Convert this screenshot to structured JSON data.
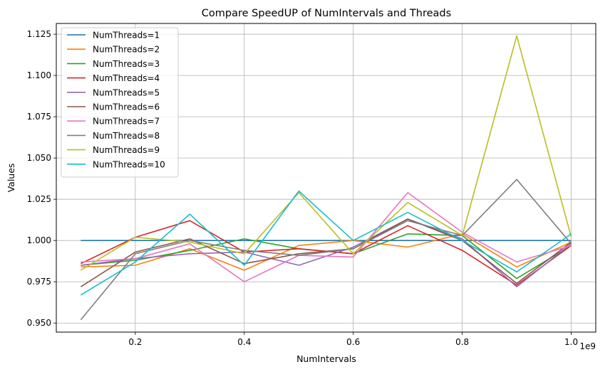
{
  "chart_data": {
    "type": "line",
    "title": "Compare SpeedUP of NumIntervals and Threads",
    "xlabel": "NumIntervals",
    "ylabel": "Values",
    "x_offset_text": "1e9",
    "x": [
      0.1,
      0.2,
      0.3,
      0.4,
      0.5,
      0.6,
      0.7,
      0.8,
      0.9,
      1.0
    ],
    "xlim": [
      0.055,
      1.045
    ],
    "ylim": [
      0.9445,
      1.1315
    ],
    "xticks": [
      0.2,
      0.4,
      0.6,
      0.8,
      1.0
    ],
    "xtick_labels": [
      "0.2",
      "0.4",
      "0.6",
      "0.8",
      "1.0"
    ],
    "yticks": [
      0.95,
      0.975,
      1.0,
      1.025,
      1.05,
      1.075,
      1.1,
      1.125
    ],
    "ytick_labels": [
      "0.950",
      "0.975",
      "1.000",
      "1.025",
      "1.050",
      "1.075",
      "1.100",
      "1.125"
    ],
    "grid": true,
    "legend_position": "top-left",
    "series": [
      {
        "name": "NumThreads=1",
        "color": "#1f77b4",
        "values": [
          1.0,
          1.0,
          1.0,
          1.0,
          1.0,
          1.0,
          1.0,
          1.0,
          1.0,
          1.0
        ]
      },
      {
        "name": "NumThreads=2",
        "color": "#ff7f0e",
        "values": [
          0.984,
          0.985,
          0.995,
          0.982,
          0.997,
          1.0,
          0.996,
          1.004,
          0.984,
          0.999
        ]
      },
      {
        "name": "NumThreads=3",
        "color": "#2ca02c",
        "values": [
          0.985,
          0.988,
          0.994,
          1.001,
          0.995,
          0.992,
          1.004,
          1.003,
          0.977,
          0.997
        ]
      },
      {
        "name": "NumThreads=4",
        "color": "#d62728",
        "values": [
          0.986,
          1.002,
          1.012,
          0.993,
          0.995,
          0.992,
          1.009,
          0.994,
          0.973,
          0.997
        ]
      },
      {
        "name": "NumThreads=5",
        "color": "#9467bd",
        "values": [
          0.985,
          0.989,
          0.992,
          0.993,
          0.985,
          0.996,
          1.013,
          1.001,
          0.972,
          0.998
        ]
      },
      {
        "name": "NumThreads=6",
        "color": "#8c564b",
        "values": [
          0.972,
          0.993,
          1.001,
          0.986,
          0.992,
          0.995,
          1.013,
          1.0,
          0.974,
          0.999
        ]
      },
      {
        "name": "NumThreads=7",
        "color": "#e377c2",
        "values": [
          0.987,
          0.989,
          0.998,
          0.975,
          0.991,
          0.99,
          1.029,
          1.005,
          0.987,
          0.997
        ]
      },
      {
        "name": "NumThreads=8",
        "color": "#7f7f7f",
        "values": [
          0.952,
          0.992,
          1.0,
          0.994,
          0.991,
          0.995,
          1.012,
          1.003,
          1.037,
          0.998
        ]
      },
      {
        "name": "NumThreads=9",
        "color": "#bcbd22",
        "values": [
          0.982,
          1.002,
          0.999,
          0.992,
          1.029,
          0.992,
          1.023,
          1.003,
          1.124,
          1.002
        ]
      },
      {
        "name": "NumThreads=10",
        "color": "#17becf",
        "values": [
          0.967,
          0.987,
          1.016,
          0.985,
          1.03,
          1.0,
          1.017,
          1.0,
          0.981,
          1.004
        ]
      }
    ]
  }
}
